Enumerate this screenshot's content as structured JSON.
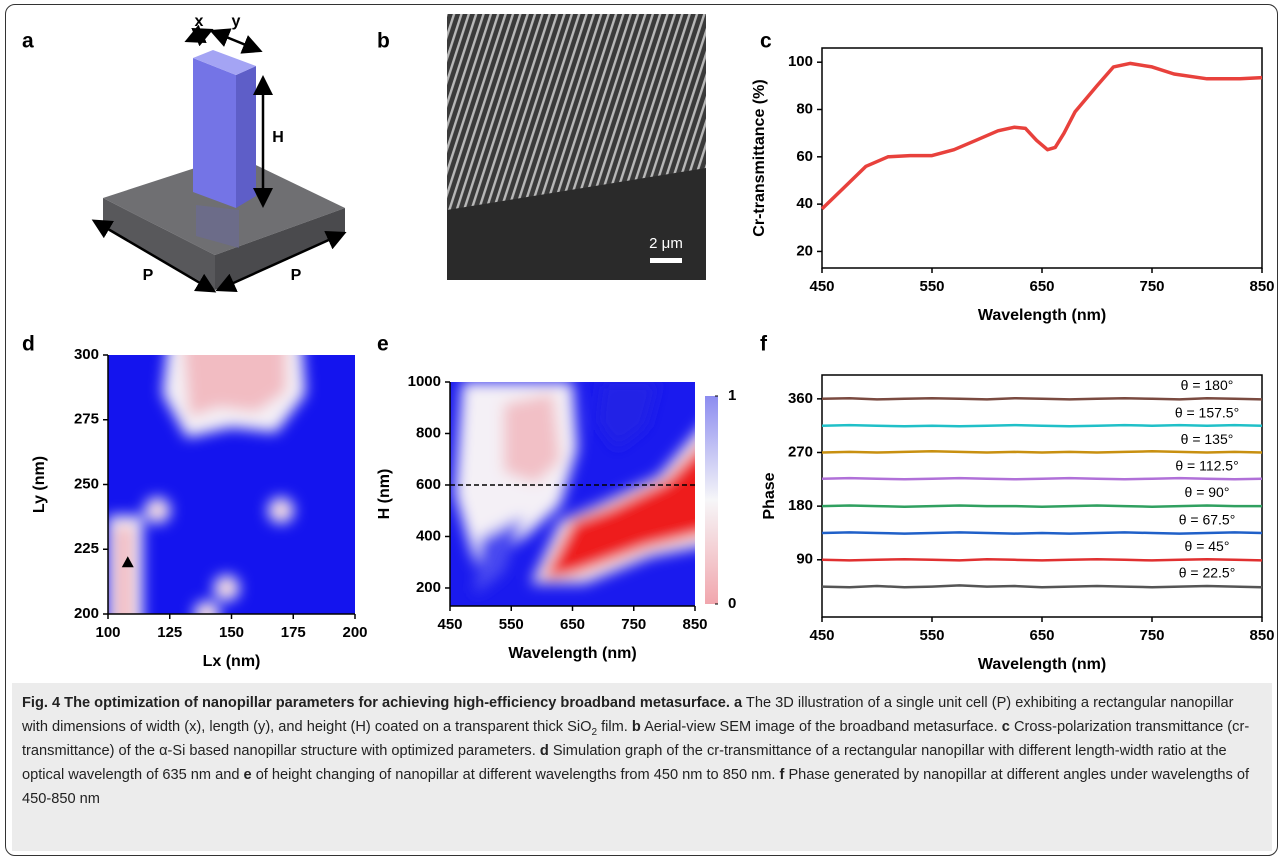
{
  "illustration": {
    "panel": "a",
    "labels": [
      "x",
      "y",
      "H",
      "P",
      "P"
    ]
  },
  "sem": {
    "panel": "b",
    "scale_bar": "2 μm"
  },
  "chart_data": [
    {
      "panel": "c",
      "type": "line",
      "xlabel": "Wavelength (nm)",
      "ylabel": "Cr-transmittance (%)",
      "xlim": [
        450,
        850
      ],
      "ylim": [
        13,
        106
      ],
      "xticks": [
        450,
        550,
        650,
        750,
        850
      ],
      "yticks": [
        20,
        40,
        60,
        80,
        100
      ],
      "x": [
        450,
        470,
        490,
        510,
        530,
        550,
        570,
        590,
        610,
        625,
        635,
        645,
        655,
        662,
        670,
        680,
        700,
        715,
        730,
        750,
        770,
        800,
        830,
        850
      ],
      "series": [
        {
          "color": "#e8413c",
          "values": [
            38,
            47,
            56,
            60,
            60.5,
            60.5,
            63,
            67,
            71,
            72.5,
            72,
            67,
            63,
            64,
            70,
            79,
            90,
            98,
            99.5,
            98,
            95,
            93,
            93,
            93.5
          ]
        }
      ]
    },
    {
      "panel": "d",
      "type": "heatmap",
      "xlabel": "Lx (nm)",
      "ylabel": "Ly (nm)",
      "xlim": [
        100,
        200
      ],
      "ylim": [
        200,
        300
      ],
      "xticks": [
        100,
        125,
        150,
        175,
        200
      ],
      "yticks": [
        200,
        225,
        250,
        275,
        300
      ],
      "marker": {
        "x": 108,
        "y": 220
      }
    },
    {
      "panel": "e",
      "type": "heatmap",
      "xlabel": "Wavelength (nm)",
      "ylabel": "H (nm)",
      "xlim": [
        450,
        850
      ],
      "ylim": [
        130,
        1000
      ],
      "xticks": [
        450,
        550,
        650,
        750,
        850
      ],
      "yticks": [
        200,
        400,
        600,
        800,
        1000
      ],
      "hline": 600,
      "colorbar": {
        "lim": [
          0,
          1
        ],
        "ticks": [
          0,
          1
        ]
      }
    },
    {
      "panel": "f",
      "type": "line",
      "xlabel": "Wavelength (nm)",
      "ylabel": "Phase",
      "xlim": [
        450,
        850
      ],
      "ylim": [
        -6,
        400
      ],
      "xticks": [
        450,
        550,
        650,
        750,
        850
      ],
      "yticks": [
        90,
        180,
        270,
        360
      ],
      "x": [
        450,
        475,
        500,
        525,
        550,
        575,
        600,
        625,
        650,
        675,
        700,
        725,
        750,
        775,
        800,
        825,
        850
      ],
      "series": [
        {
          "name": "θ = 22.5°",
          "color": "#555555",
          "values": [
            45,
            44,
            46,
            44,
            45,
            47,
            45,
            46,
            44,
            45,
            46,
            45,
            44,
            45,
            46,
            45,
            44
          ]
        },
        {
          "name": "θ = 45°",
          "color": "#e03030",
          "values": [
            90,
            89,
            90,
            91,
            90,
            89,
            91,
            90,
            89,
            90,
            91,
            90,
            89,
            90,
            91,
            90,
            89
          ]
        },
        {
          "name": "θ = 67.5°",
          "color": "#2060c8",
          "values": [
            135,
            136,
            135,
            134,
            135,
            136,
            135,
            134,
            135,
            134,
            135,
            136,
            135,
            134,
            135,
            136,
            135
          ]
        },
        {
          "name": "θ = 90°",
          "color": "#30a060",
          "values": [
            180,
            181,
            180,
            179,
            180,
            181,
            180,
            180,
            179,
            180,
            181,
            180,
            179,
            180,
            181,
            180,
            180
          ]
        },
        {
          "name": "θ = 112.5°",
          "color": "#b070d8",
          "values": [
            226,
            227,
            226,
            225,
            226,
            227,
            226,
            225,
            226,
            227,
            226,
            225,
            226,
            227,
            226,
            225,
            226
          ]
        },
        {
          "name": "θ = 135°",
          "color": "#c89010",
          "values": [
            270,
            271,
            270,
            271,
            272,
            271,
            270,
            271,
            270,
            271,
            270,
            271,
            272,
            271,
            270,
            271,
            270
          ]
        },
        {
          "name": "θ = 157.5°",
          "color": "#20c0c8",
          "values": [
            315,
            316,
            315,
            314,
            315,
            314,
            315,
            316,
            315,
            314,
            315,
            316,
            315,
            316,
            315,
            316,
            315
          ]
        },
        {
          "name": "θ = 180°",
          "color": "#7a4a40",
          "values": [
            360,
            361,
            359,
            360,
            361,
            360,
            359,
            361,
            360,
            359,
            360,
            361,
            360,
            359,
            361,
            360,
            359
          ]
        }
      ]
    }
  ],
  "caption": [
    "Fig. 4 The optimization of nanopillar parameters for achieving high-efficiency broadband metasurface.",
    "a",
    "The 3D illustration of a single unit cell (P) exhibiting a rectangular nanopillar with dimensions of width (x), length (y), and height (H) coated on a transparent thick SiO",
    "2",
    "film.",
    "b",
    "Aerial-view SEM image of the broadband metasurface.",
    "c",
    "Cross-polarization transmittance (cr-transmittance) of the α-Si based nanopillar structure with optimized parameters.",
    "d",
    "Simulation graph of the cr-transmittance of a rectangular nanopillar with different length-width ratio at the optical wavelength of 635 nm and",
    "e",
    "of height changing of nanopillar at different wavelengths from 450 nm to 850 nm.",
    "f",
    "Phase generated by nanopillar at different angles under wavelengths of 450-850 nm"
  ]
}
